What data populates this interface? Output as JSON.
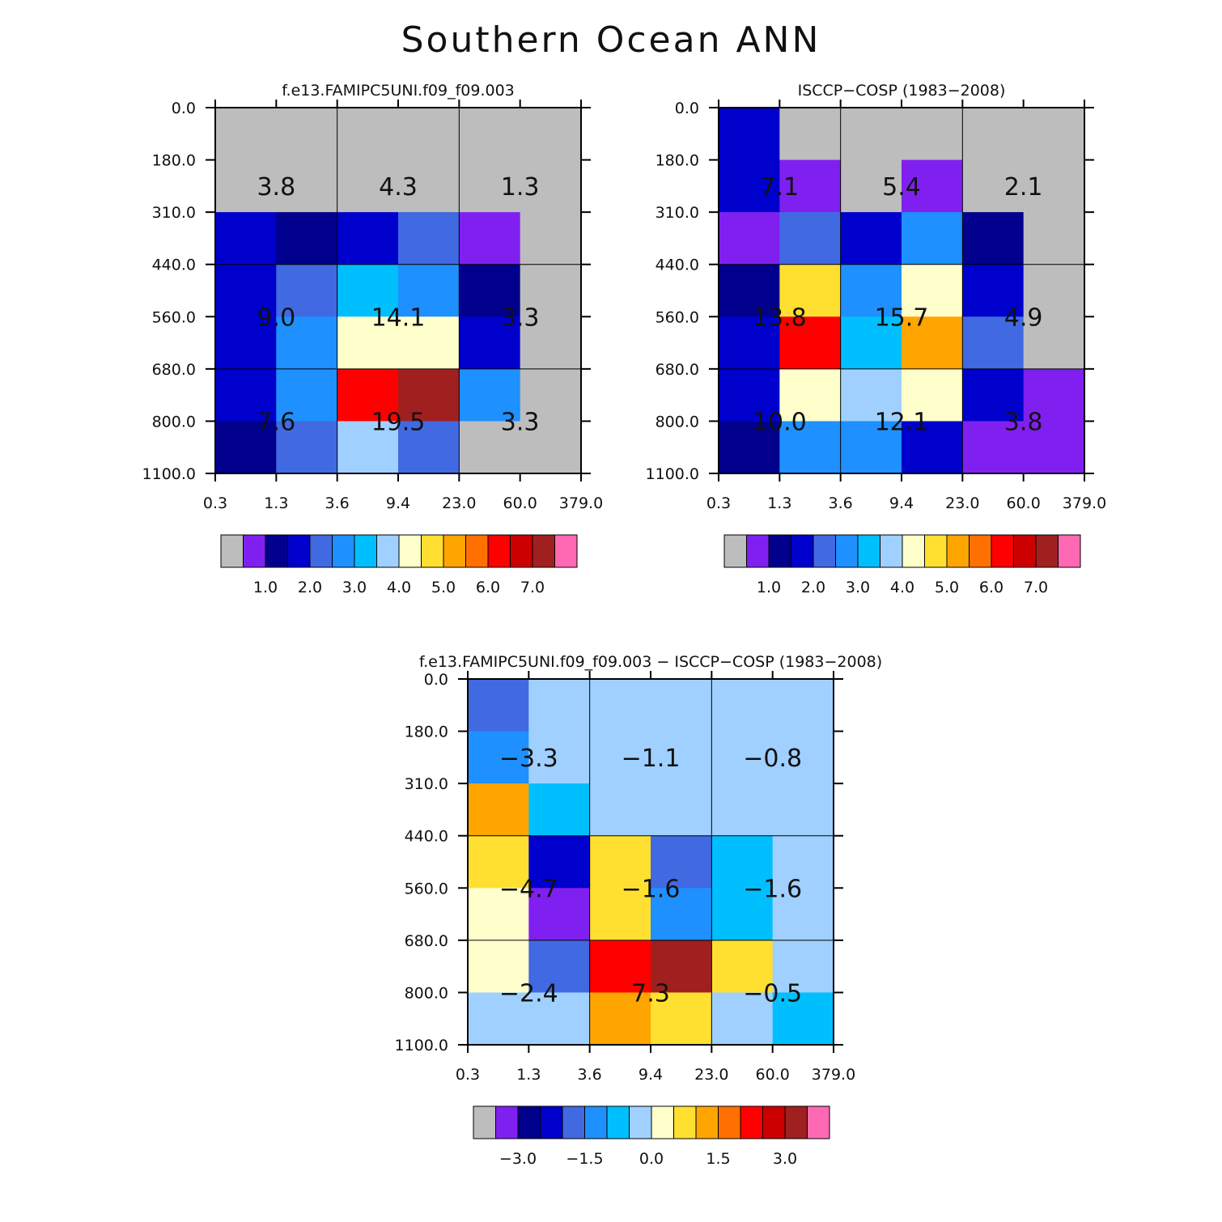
{
  "title": "Southern Ocean ANN",
  "axes": {
    "y_ticks": [
      "0.0",
      "180.0",
      "310.0",
      "440.0",
      "560.0",
      "680.0",
      "800.0",
      "1100.0"
    ],
    "x_ticks": [
      "0.3",
      "1.3",
      "3.6",
      "9.4",
      "23.0",
      "60.0",
      "379.0"
    ]
  },
  "colorbars": {
    "absolute": {
      "colors": [
        "#bdbdbd",
        "#8020f0",
        "#00008c",
        "#0000cd",
        "#4169e1",
        "#1e90ff",
        "#00bfff",
        "#a0d0ff",
        "#ffffcc",
        "#ffe030",
        "#ffa500",
        "#ff7000",
        "#ff0000",
        "#cc0000",
        "#a02020",
        "#ff69b4"
      ],
      "labels": [
        "1.0",
        "2.0",
        "3.0",
        "4.0",
        "5.0",
        "6.0",
        "7.0"
      ]
    },
    "difference": {
      "colors": [
        "#bdbdbd",
        "#8020f0",
        "#00008c",
        "#0000cd",
        "#4169e1",
        "#1e90ff",
        "#00bfff",
        "#a0d0ff",
        "#ffffcc",
        "#ffe030",
        "#ffa500",
        "#ff7000",
        "#ff0000",
        "#cc0000",
        "#a02020",
        "#ff69b4"
      ],
      "labels": [
        "-3.0",
        "-1.5",
        "0.0",
        "1.5",
        "3.0"
      ]
    }
  },
  "chart_data": [
    {
      "type": "heatmap",
      "title": "f.e13.FAMIPC5UNI.f09_f09.003",
      "cells": [
        [
          "#bdbdbd",
          "#bdbdbd",
          "#bdbdbd",
          "#bdbdbd",
          "#bdbdbd",
          "#bdbdbd"
        ],
        [
          "#bdbdbd",
          "#bdbdbd",
          "#bdbdbd",
          "#bdbdbd",
          "#bdbdbd",
          "#bdbdbd"
        ],
        [
          "#0000cd",
          "#00008c",
          "#0000cd",
          "#4169e1",
          "#8020f0",
          "#bdbdbd"
        ],
        [
          "#0000cd",
          "#4169e1",
          "#00bfff",
          "#1e90ff",
          "#00008c",
          "#bdbdbd"
        ],
        [
          "#0000cd",
          "#1e90ff",
          "#ffffcc",
          "#ffffcc",
          "#0000cd",
          "#bdbdbd"
        ],
        [
          "#0000cd",
          "#1e90ff",
          "#ff0000",
          "#a02020",
          "#1e90ff",
          "#bdbdbd"
        ],
        [
          "#00008c",
          "#4169e1",
          "#a0d0ff",
          "#4169e1",
          "#bdbdbd",
          "#bdbdbd"
        ]
      ],
      "summary_values": [
        [
          "3.8",
          "4.3",
          "1.3"
        ],
        [
          "9.0",
          "14.1",
          "3.3"
        ],
        [
          "7.6",
          "19.5",
          "3.3"
        ]
      ]
    },
    {
      "type": "heatmap",
      "title": "ISCCP-COSP (1983-2008)",
      "cells": [
        [
          "#0000cd",
          "#bdbdbd",
          "#bdbdbd",
          "#bdbdbd",
          "#bdbdbd",
          "#bdbdbd"
        ],
        [
          "#0000cd",
          "#8020f0",
          "#bdbdbd",
          "#8020f0",
          "#bdbdbd",
          "#bdbdbd"
        ],
        [
          "#8020f0",
          "#4169e1",
          "#0000cd",
          "#1e90ff",
          "#00008c",
          "#bdbdbd"
        ],
        [
          "#00008c",
          "#ffe030",
          "#1e90ff",
          "#ffffcc",
          "#0000cd",
          "#bdbdbd"
        ],
        [
          "#0000cd",
          "#ff0000",
          "#00bfff",
          "#ffa500",
          "#4169e1",
          "#bdbdbd"
        ],
        [
          "#0000cd",
          "#ffffcc",
          "#a0d0ff",
          "#ffffcc",
          "#0000cd",
          "#8020f0"
        ],
        [
          "#00008c",
          "#1e90ff",
          "#1e90ff",
          "#0000cd",
          "#8020f0",
          "#8020f0"
        ]
      ],
      "summary_values": [
        [
          "7.1",
          "5.4",
          "2.1"
        ],
        [
          "13.8",
          "15.7",
          "4.9"
        ],
        [
          "10.0",
          "12.1",
          "3.8"
        ]
      ]
    },
    {
      "type": "heatmap",
      "title": "f.e13.FAMIPC5UNI.f09_f09.003 - ISCCP-COSP (1983-2008)",
      "cells": [
        [
          "#4169e1",
          "#a0d0ff",
          "#a0d0ff",
          "#a0d0ff",
          "#a0d0ff",
          "#a0d0ff"
        ],
        [
          "#1e90ff",
          "#a0d0ff",
          "#a0d0ff",
          "#a0d0ff",
          "#a0d0ff",
          "#a0d0ff"
        ],
        [
          "#ffa500",
          "#00bfff",
          "#a0d0ff",
          "#a0d0ff",
          "#a0d0ff",
          "#a0d0ff"
        ],
        [
          "#ffe030",
          "#0000cd",
          "#ffe030",
          "#4169e1",
          "#00bfff",
          "#a0d0ff"
        ],
        [
          "#ffffcc",
          "#8020f0",
          "#ffe030",
          "#1e90ff",
          "#00bfff",
          "#a0d0ff"
        ],
        [
          "#ffffcc",
          "#4169e1",
          "#ff0000",
          "#a02020",
          "#ffe030",
          "#a0d0ff"
        ],
        [
          "#a0d0ff",
          "#a0d0ff",
          "#ffa500",
          "#ffe030",
          "#a0d0ff",
          "#00bfff"
        ]
      ],
      "summary_values": [
        [
          "-3.3",
          "-1.1",
          "-0.8"
        ],
        [
          "-4.7",
          "-1.6",
          "-1.6"
        ],
        [
          "-2.4",
          "7.3",
          "-0.5"
        ]
      ]
    }
  ]
}
